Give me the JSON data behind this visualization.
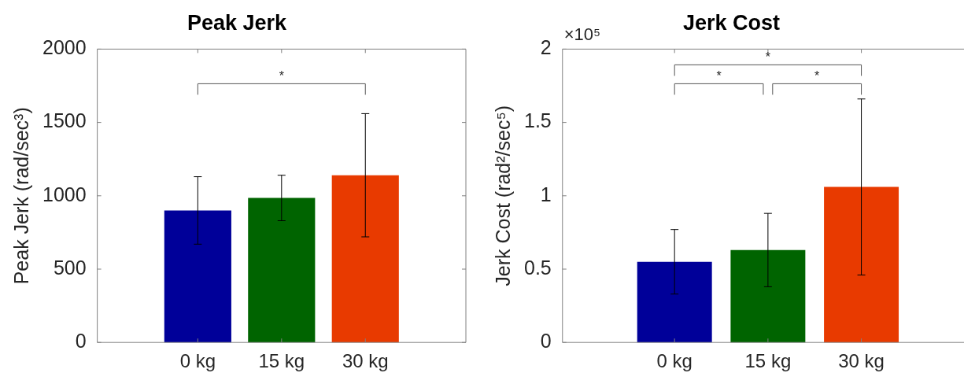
{
  "chart_data": [
    {
      "type": "bar",
      "title": "Peak Jerk",
      "ylabel": "Peak Jerk (rad/sec³)",
      "categories": [
        "0 kg",
        "15 kg",
        "30 kg"
      ],
      "values": [
        900,
        985,
        1140
      ],
      "errors": [
        230,
        155,
        420
      ],
      "colors": [
        "#000099",
        "#006400",
        "#e83a00"
      ],
      "ylim": [
        0,
        2000
      ],
      "yticks": [
        0,
        500,
        1000,
        1500,
        2000
      ],
      "annotations": [
        "*"
      ]
    },
    {
      "type": "bar",
      "title": "Jerk Cost",
      "ylabel": "Jerk Cost (rad²/sec⁵)",
      "categories": [
        "0 kg",
        "15 kg",
        "30 kg"
      ],
      "values": [
        0.55,
        0.63,
        1.06
      ],
      "errors": [
        0.22,
        0.25,
        0.6
      ],
      "colors": [
        "#000099",
        "#006400",
        "#e83a00"
      ],
      "ylim": [
        0,
        2
      ],
      "yticks": [
        0,
        0.5,
        1,
        1.5,
        2
      ],
      "annotations": [
        "×10⁵",
        "*",
        "*",
        "*"
      ]
    }
  ]
}
